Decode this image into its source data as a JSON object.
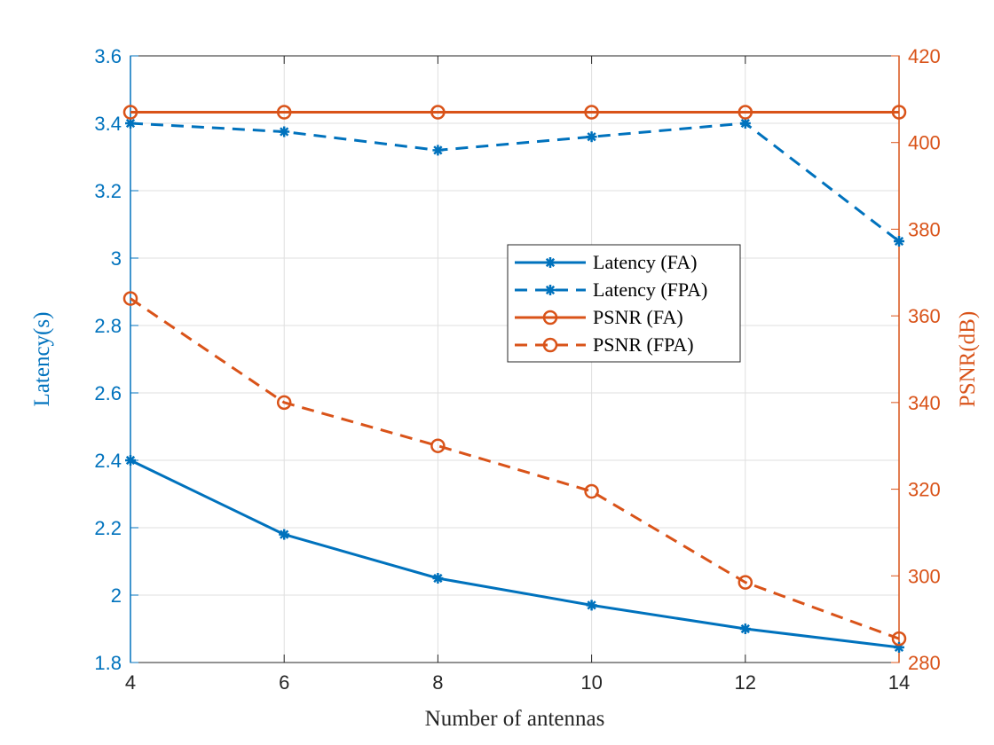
{
  "chart_data": {
    "type": "line",
    "title": "",
    "xlabel": "Number of antennas",
    "x": [
      4,
      6,
      8,
      10,
      12,
      14
    ],
    "xlim": [
      4,
      14
    ],
    "xticks": [
      "4",
      "6",
      "8",
      "10",
      "12",
      "14"
    ],
    "grid": true,
    "left_axis": {
      "label": "Latency(s)",
      "ylim": [
        1.8,
        3.6
      ],
      "ticks": [
        "1.8",
        "2",
        "2.2",
        "2.4",
        "2.6",
        "2.8",
        "3",
        "3.2",
        "3.4",
        "3.6"
      ],
      "tick_values": [
        1.8,
        2.0,
        2.2,
        2.4,
        2.6,
        2.8,
        3.0,
        3.2,
        3.4,
        3.6
      ],
      "color": "#0072BD"
    },
    "right_axis": {
      "label": "PSNR(dB)",
      "ylim": [
        280,
        420
      ],
      "ticks": [
        "280",
        "300",
        "320",
        "340",
        "360",
        "380",
        "400",
        "420"
      ],
      "tick_values": [
        280,
        300,
        320,
        340,
        360,
        380,
        400,
        420
      ],
      "color": "#D95319"
    },
    "series": [
      {
        "name": "Latency (FA)",
        "axis": "left",
        "color": "#0072BD",
        "dash": "solid",
        "marker": "asterisk",
        "values": [
          2.4,
          2.18,
          2.05,
          1.97,
          1.9,
          1.845
        ]
      },
      {
        "name": "Latency (FPA)",
        "axis": "left",
        "color": "#0072BD",
        "dash": "dashed",
        "marker": "asterisk",
        "values": [
          3.4,
          3.375,
          3.32,
          3.36,
          3.4,
          3.05
        ]
      },
      {
        "name": "PSNR (FA)",
        "axis": "right",
        "color": "#D95319",
        "dash": "solid",
        "marker": "circle",
        "values": [
          407,
          407,
          407,
          407,
          407,
          407
        ]
      },
      {
        "name": "PSNR (FPA)",
        "axis": "right",
        "color": "#D95319",
        "dash": "dashed",
        "marker": "circle",
        "values": [
          364,
          340,
          330,
          319.5,
          298.5,
          285.5
        ]
      }
    ],
    "legend": {
      "position": "center-right",
      "entries": [
        "Latency (FA)",
        "Latency (FPA)",
        "PSNR (FA)",
        "PSNR (FPA)"
      ]
    }
  }
}
